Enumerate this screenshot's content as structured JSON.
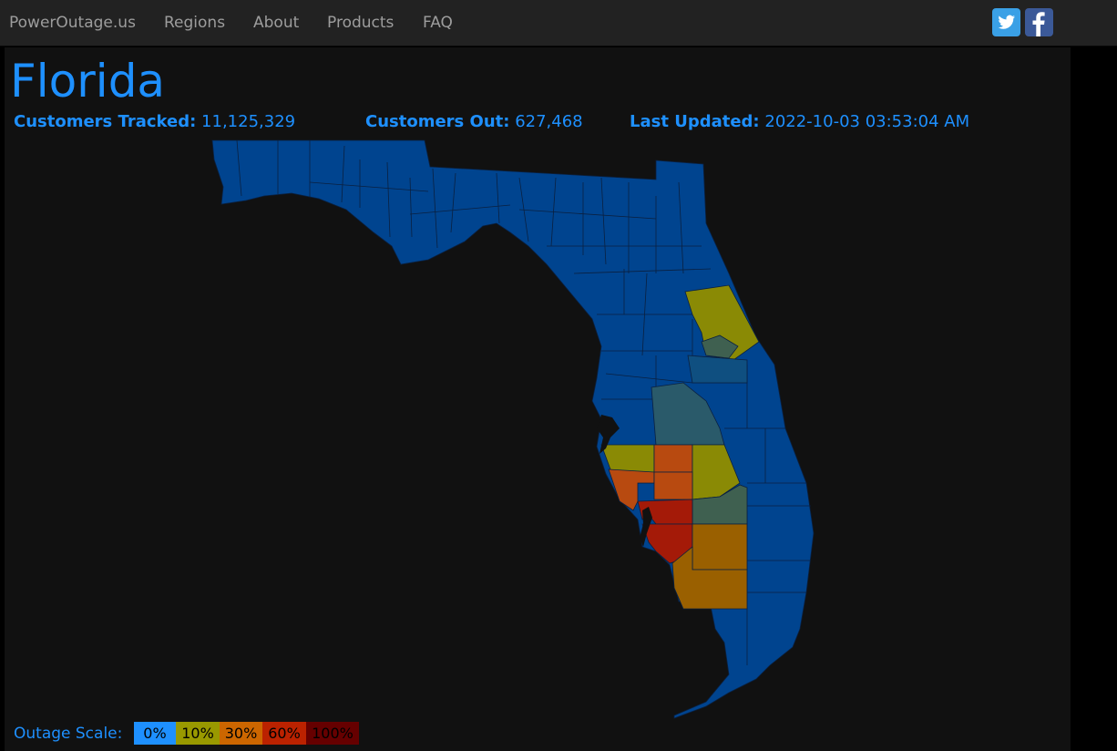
{
  "nav": {
    "brand": "PowerOutage.us",
    "items": [
      "Regions",
      "About",
      "Products",
      "FAQ"
    ]
  },
  "social": {
    "twitter": "twitter-icon",
    "facebook": "facebook-icon"
  },
  "page": {
    "title": "Florida",
    "customers_tracked_label": "Customers Tracked:",
    "customers_tracked": "11,125,329",
    "customers_out_label": "Customers Out:",
    "customers_out": "627,468",
    "last_updated_label": "Last Updated:",
    "last_updated": "2022-10-03 03:53:04 AM"
  },
  "scale": {
    "label": "Outage Scale:",
    "levels": [
      "0%",
      "10%",
      "30%",
      "60%",
      "100%"
    ],
    "colors": [
      "#1e90ff",
      "#999900",
      "#cc6600",
      "#bb2200",
      "#660000"
    ]
  },
  "colors": {
    "accent": "#1e90ff",
    "county_base": "#00448f",
    "county_low": "#0f4f80",
    "county_teal": "#2a5a6a",
    "county_green": "#3f6050",
    "county_yellow": "#8a8a05",
    "county_orange": "#b84a10",
    "county_amber": "#9a6000",
    "county_red": "#a41a08"
  }
}
